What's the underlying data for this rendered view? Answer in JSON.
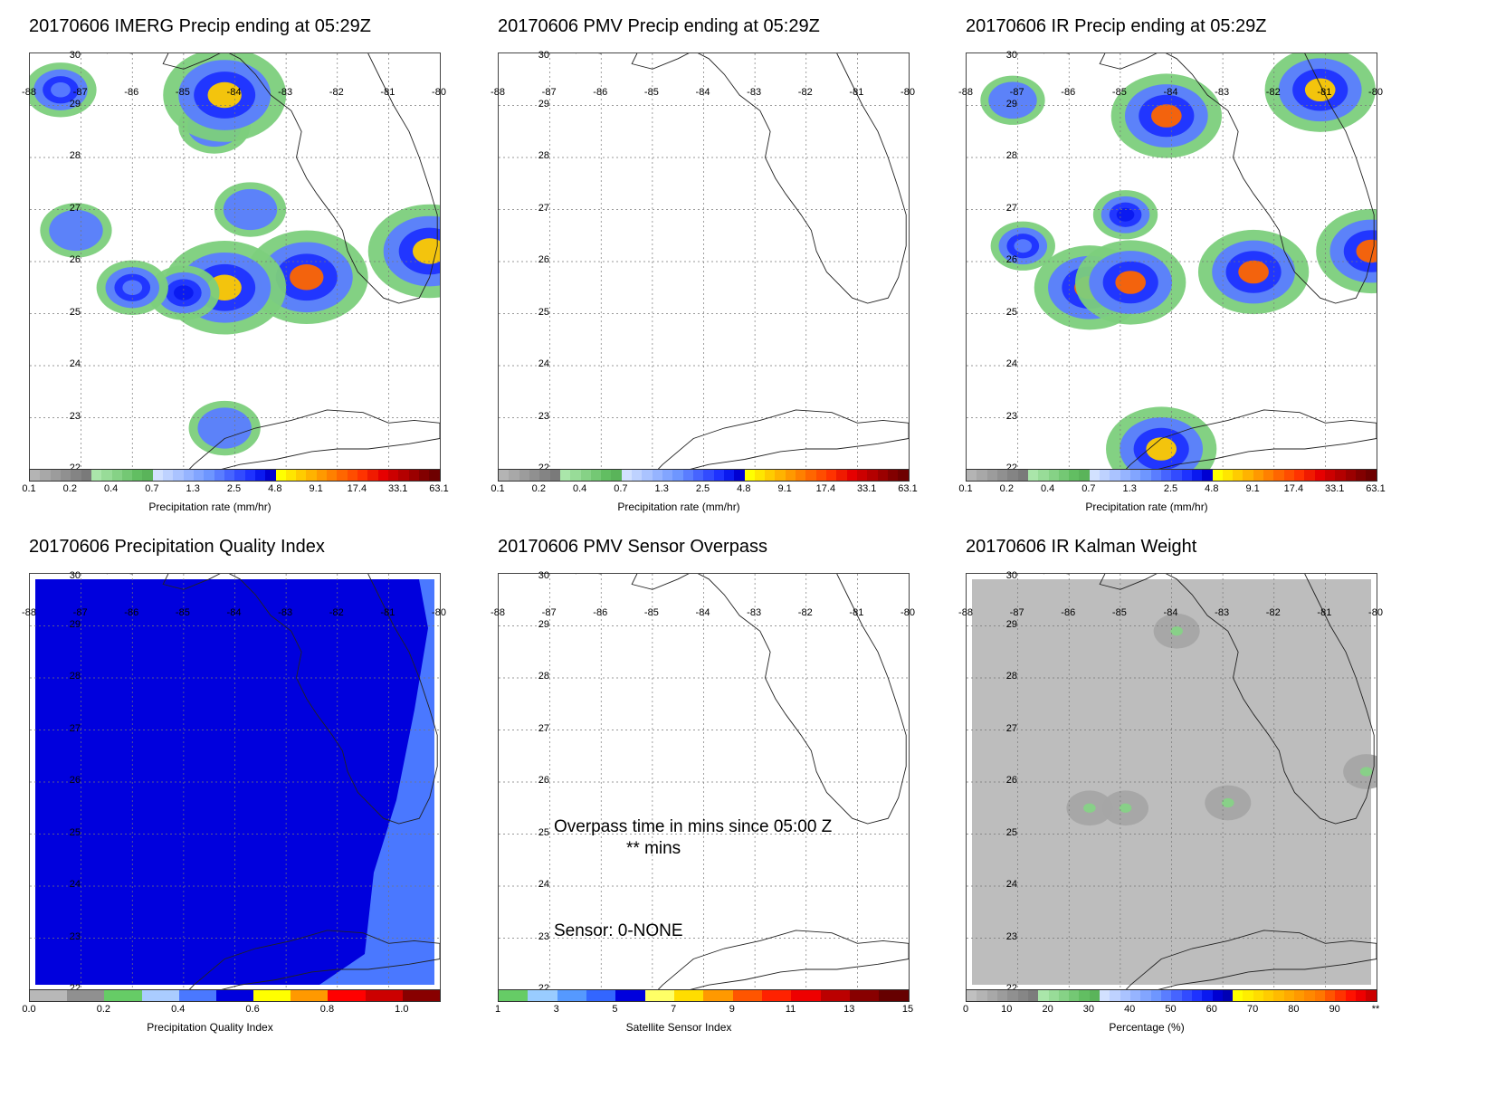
{
  "panels": [
    {
      "id": "imerg",
      "title": "20170606 IMERG Precip ending at 05:29Z",
      "field": "precip",
      "colorbar": "precip"
    },
    {
      "id": "pmv",
      "title": "20170606 PMV Precip ending at 05:29Z",
      "field": "none",
      "colorbar": "precip"
    },
    {
      "id": "ir",
      "title": "20170606 IR Precip ending at 05:29Z",
      "field": "ir",
      "colorbar": "precip"
    },
    {
      "id": "quality",
      "title": "20170606 Precipitation Quality Index",
      "field": "quality",
      "colorbar": "quality"
    },
    {
      "id": "sensor",
      "title": "20170606 PMV Sensor Overpass",
      "field": "none",
      "colorbar": "sensor"
    },
    {
      "id": "kalman",
      "title": "20170606 IR Kalman Weight",
      "field": "kalman",
      "colorbar": "kalman"
    }
  ],
  "axes": {
    "lon_labels": [
      "-88",
      "-87",
      "-86",
      "-85",
      "-84",
      "-83",
      "-82",
      "-81",
      "-80"
    ],
    "lat_labels": [
      "30",
      "29",
      "28",
      "27",
      "26",
      "25",
      "24",
      "23",
      "22"
    ]
  },
  "overpass": {
    "line1": "Overpass time in mins since 05:00 Z",
    "line2": "** mins",
    "sensor_label": "Sensor:   0-NONE"
  },
  "colorbars": {
    "precip": {
      "title": "Precipitation rate (mm/hr)",
      "ticks": [
        "0.1",
        "0.2",
        "0.4",
        "0.7",
        "1.3",
        "2.5",
        "4.8",
        "9.1",
        "17.4",
        "33.1",
        "63.1"
      ],
      "colors": [
        "#b4b4b4",
        "#a8a8a8",
        "#9c9c9c",
        "#909090",
        "#848484",
        "#7a7a7a",
        "#aae6aa",
        "#98dc98",
        "#86d286",
        "#74c874",
        "#62be62",
        "#5ab45a",
        "#d2e1ff",
        "#bed2ff",
        "#aac3ff",
        "#96b4ff",
        "#82a5ff",
        "#6e96ff",
        "#5a7dff",
        "#4664ff",
        "#324bff",
        "#1e32ff",
        "#0a19f0",
        "#0000d2",
        "#ffff00",
        "#ffe600",
        "#ffcc00",
        "#ffb300",
        "#ff9900",
        "#ff8000",
        "#ff6600",
        "#ff4d00",
        "#ff3300",
        "#f01a00",
        "#e60000",
        "#cc0000",
        "#b40000",
        "#9b0000",
        "#820000",
        "#6e0000"
      ]
    },
    "quality": {
      "title": "Precipitation Quality Index",
      "ticks": [
        "0.0",
        "0.2",
        "0.4",
        "0.6",
        "0.8",
        "1.0"
      ],
      "colors": [
        "#b8b8b8",
        "#909090",
        "#66cc66",
        "#aaccff",
        "#4a78ff",
        "#0000dd",
        "#ffff00",
        "#ff9900",
        "#ff0000",
        "#cc0000",
        "#880000"
      ]
    },
    "sensor": {
      "title": "Satellite Sensor Index",
      "ticks": [
        "1",
        "3",
        "5",
        "7",
        "9",
        "11",
        "13",
        "15"
      ],
      "colors": [
        "#66cc66",
        "#99ccff",
        "#5599ff",
        "#3366ff",
        "#0000dd",
        "#ffff66",
        "#ffdd00",
        "#ff9900",
        "#ff5500",
        "#ff2200",
        "#ee0000",
        "#bb0000",
        "#880000",
        "#660000"
      ]
    },
    "kalman": {
      "title": "Percentage (%)",
      "ticks": [
        "0",
        "10",
        "20",
        "30",
        "40",
        "50",
        "60",
        "70",
        "80",
        "90",
        "**"
      ],
      "colors": [
        "#c0c0c0",
        "#b4b4b4",
        "#a8a8a8",
        "#9c9c9c",
        "#909090",
        "#868686",
        "#7c7c7c",
        "#aae6aa",
        "#98dc98",
        "#86d286",
        "#74c874",
        "#62be62",
        "#5ab45a",
        "#d2e1ff",
        "#bed2ff",
        "#aac3ff",
        "#96b4ff",
        "#82a5ff",
        "#6e96ff",
        "#5a7dff",
        "#4664ff",
        "#324bff",
        "#1e32ff",
        "#0a19f0",
        "#0000d2",
        "#0000b4",
        "#ffff00",
        "#ffee00",
        "#ffdd00",
        "#ffcc00",
        "#ffbb00",
        "#ffaa00",
        "#ff9900",
        "#ff8800",
        "#ff7700",
        "#ff5500",
        "#ff3300",
        "#ff1100",
        "#ee0000",
        "#cc0000"
      ]
    }
  },
  "chart_data": [
    {
      "type": "heatmap",
      "title": "20170606 IMERG Precip ending at 05:29Z",
      "xlim": [
        -88,
        -80
      ],
      "ylim": [
        22,
        30
      ],
      "grid": true,
      "cells": [
        {
          "lon": -87.4,
          "lat": 29.3,
          "value": 1.3
        },
        {
          "lon": -84.4,
          "lat": 28.6,
          "value": 1.0
        },
        {
          "lon": -84.2,
          "lat": 29.2,
          "value": 4.8
        },
        {
          "lon": -83.7,
          "lat": 27.0,
          "value": 1.0
        },
        {
          "lon": -82.6,
          "lat": 25.7,
          "value": 9.1
        },
        {
          "lon": -84.2,
          "lat": 25.5,
          "value": 4.8
        },
        {
          "lon": -85.0,
          "lat": 25.4,
          "value": 2.5
        },
        {
          "lon": -86.0,
          "lat": 25.5,
          "value": 1.3
        },
        {
          "lon": -87.1,
          "lat": 26.6,
          "value": 0.7
        },
        {
          "lon": -80.2,
          "lat": 26.2,
          "value": 4.8
        },
        {
          "lon": -84.2,
          "lat": 22.8,
          "value": 0.5
        }
      ]
    },
    {
      "type": "heatmap",
      "title": "20170606 PMV Precip ending at 05:29Z",
      "xlim": [
        -88,
        -80
      ],
      "ylim": [
        22,
        30
      ],
      "grid": true,
      "cells": []
    },
    {
      "type": "heatmap",
      "title": "20170606 IR Precip ending at 05:29Z",
      "xlim": [
        -88,
        -80
      ],
      "ylim": [
        22,
        30
      ],
      "grid": true,
      "cells": [
        {
          "lon": -84.1,
          "lat": 28.8,
          "value": 9.1
        },
        {
          "lon": -82.4,
          "lat": 25.8,
          "value": 9.1
        },
        {
          "lon": -85.6,
          "lat": 25.5,
          "value": 9.1
        },
        {
          "lon": -84.8,
          "lat": 25.6,
          "value": 9.1
        },
        {
          "lon": -84.9,
          "lat": 26.9,
          "value": 2.5
        },
        {
          "lon": -86.9,
          "lat": 26.3,
          "value": 1.3
        },
        {
          "lon": -80.1,
          "lat": 26.2,
          "value": 9.1
        },
        {
          "lon": -81.1,
          "lat": 29.3,
          "value": 4.8
        },
        {
          "lon": -87.1,
          "lat": 29.1,
          "value": 1.0
        },
        {
          "lon": -84.2,
          "lat": 22.4,
          "value": 4.8
        }
      ]
    },
    {
      "type": "heatmap",
      "title": "20170606 Precipitation Quality Index",
      "xlim": [
        -88,
        -80
      ],
      "ylim": [
        22,
        30
      ],
      "grid": true,
      "regions": [
        {
          "name": "west",
          "value": 0.55
        },
        {
          "name": "east",
          "value": 0.45
        }
      ]
    },
    {
      "type": "heatmap",
      "title": "20170606 PMV Sensor Overpass",
      "xlim": [
        -88,
        -80
      ],
      "ylim": [
        22,
        30
      ],
      "grid": true,
      "cells": []
    },
    {
      "type": "heatmap",
      "title": "20170606 IR Kalman Weight",
      "xlim": [
        -88,
        -80
      ],
      "ylim": [
        22,
        30
      ],
      "grid": true,
      "background_value": 2,
      "cells": [
        {
          "lon": -83.9,
          "lat": 28.9,
          "value": 20
        },
        {
          "lon": -82.9,
          "lat": 25.6,
          "value": 20
        },
        {
          "lon": -85.6,
          "lat": 25.5,
          "value": 20
        },
        {
          "lon": -84.9,
          "lat": 25.5,
          "value": 20
        },
        {
          "lon": -80.2,
          "lat": 26.2,
          "value": 20
        }
      ]
    }
  ]
}
